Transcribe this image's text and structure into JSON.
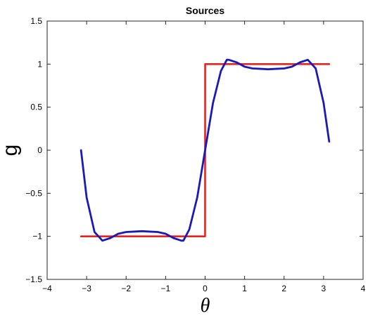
{
  "chart_data": {
    "type": "line",
    "title": "Sources",
    "xlabel": "θ",
    "ylabel": "g",
    "xlim": [
      -4,
      4
    ],
    "ylim": [
      -1.5,
      1.5
    ],
    "xticks": [
      -4,
      -3,
      -2,
      -1,
      0,
      1,
      2,
      3,
      4
    ],
    "yticks": [
      -1.5,
      -1,
      -0.5,
      0,
      0.5,
      1,
      1.5
    ],
    "xtick_labels": [
      "−4",
      "−3",
      "−2",
      "−1",
      "0",
      "1",
      "2",
      "3",
      "4"
    ],
    "ytick_labels": [
      "−1.5",
      "−1",
      "−0.5",
      "0",
      "0.5",
      "1",
      "1.5"
    ],
    "grid": false,
    "series": [
      {
        "color": "#e8231f",
        "x": [
          -3.1416,
          -0.001,
          0.001,
          3.1416
        ],
        "y": [
          -1,
          -1,
          1,
          1
        ]
      },
      {
        "color": "#1a1ab8",
        "x": [
          -3.1416,
          -3.0,
          -2.8,
          -2.6,
          -2.4,
          -2.2,
          -2.0,
          -1.8,
          -1.6,
          -1.4,
          -1.2,
          -1.0,
          -0.8,
          -0.6,
          -0.55,
          -0.4,
          -0.2,
          0.0,
          0.2,
          0.4,
          0.55,
          0.6,
          0.8,
          1.0,
          1.2,
          1.4,
          1.6,
          1.8,
          2.0,
          2.2,
          2.4,
          2.6,
          2.8,
          3.0,
          3.1416
        ],
        "y": [
          0.0,
          -0.55,
          -0.95,
          -1.05,
          -1.02,
          -0.97,
          -0.95,
          -0.945,
          -0.94,
          -0.945,
          -0.95,
          -0.97,
          -1.02,
          -1.05,
          -1.05,
          -0.92,
          -0.55,
          0.0,
          0.55,
          0.92,
          1.05,
          1.05,
          1.02,
          0.97,
          0.95,
          0.945,
          0.94,
          0.945,
          0.95,
          0.97,
          1.02,
          1.05,
          0.95,
          0.55,
          0.1
        ]
      }
    ]
  }
}
